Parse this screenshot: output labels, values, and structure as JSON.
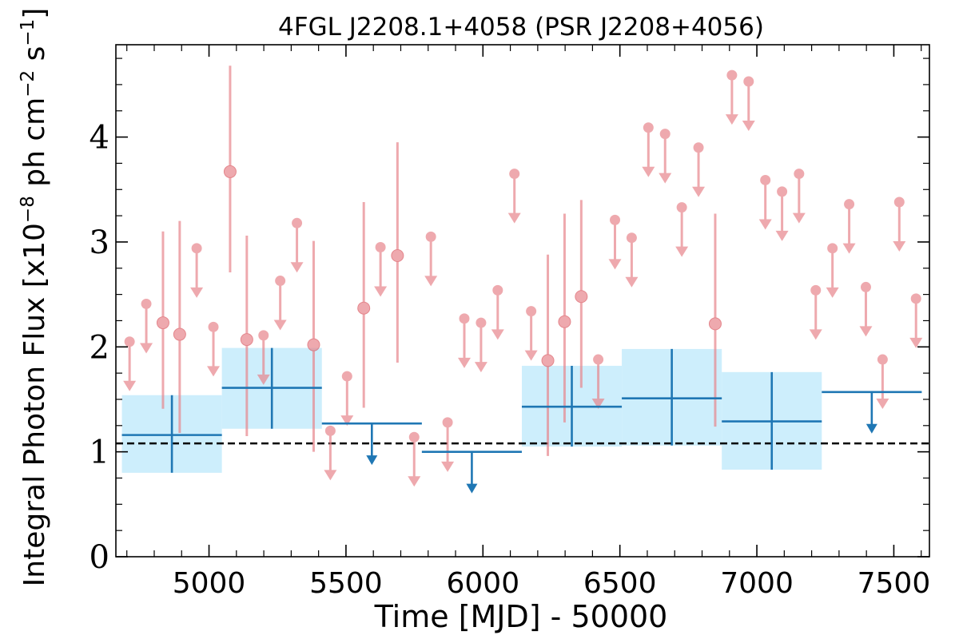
{
  "chart_data": {
    "type": "scatter",
    "title": "4FGL J2208.1+4058 (PSR J2208+4056)",
    "xlabel": "Time [MJD] - 50000",
    "ylabel": "Integral Photon Flux [x10^-8 ph cm^-2 s^-1]",
    "ylabel_parts": {
      "a": "Integral Photon Flux [x10",
      "b": "−8",
      "c": " ph cm",
      "d": "−2",
      "e": " s",
      "f": "−1",
      "g": "]"
    },
    "xlim": [
      4660,
      7630
    ],
    "ylim": [
      0,
      4.88
    ],
    "x_ticks": [
      5000,
      5500,
      6000,
      6500,
      7000,
      7500
    ],
    "x_tick_labels": [
      "5000",
      "5500",
      "6000",
      "6500",
      "7000",
      "7500"
    ],
    "y_ticks": [
      0,
      1,
      2,
      3,
      4
    ],
    "y_tick_labels": [
      "0",
      "1",
      "2",
      "3",
      "4"
    ],
    "reference_flux": 1.08,
    "colors": {
      "short_bins": "#e8868c",
      "long_bins": "#1f77b4",
      "long_band": "#cdeefc",
      "reference_line": "#000000"
    },
    "short_bins": [
      {
        "x": 4710,
        "y": 2.05,
        "ul": true
      },
      {
        "x": 4771,
        "y": 2.41,
        "ul": true
      },
      {
        "x": 4832,
        "y": 2.23,
        "ul": false,
        "lo": 1.41,
        "hi": 3.1
      },
      {
        "x": 4893,
        "y": 2.12,
        "ul": false,
        "lo": 1.18,
        "hi": 3.2
      },
      {
        "x": 4955,
        "y": 2.94,
        "ul": true
      },
      {
        "x": 5016,
        "y": 2.19,
        "ul": true
      },
      {
        "x": 5077,
        "y": 3.67,
        "ul": false,
        "lo": 2.71,
        "hi": 4.68
      },
      {
        "x": 5138,
        "y": 2.07,
        "ul": false,
        "lo": 1.15,
        "hi": 3.06
      },
      {
        "x": 5199,
        "y": 2.11,
        "ul": true
      },
      {
        "x": 5260,
        "y": 2.63,
        "ul": true
      },
      {
        "x": 5321,
        "y": 3.18,
        "ul": true
      },
      {
        "x": 5382,
        "y": 2.02,
        "ul": false,
        "lo": 1.0,
        "hi": 3.01
      },
      {
        "x": 5443,
        "y": 1.2,
        "ul": true
      },
      {
        "x": 5504,
        "y": 1.72,
        "ul": true
      },
      {
        "x": 5565,
        "y": 2.37,
        "ul": false,
        "lo": 1.42,
        "hi": 3.38
      },
      {
        "x": 5626,
        "y": 2.95,
        "ul": true
      },
      {
        "x": 5688,
        "y": 2.87,
        "ul": false,
        "lo": 1.85,
        "hi": 3.95
      },
      {
        "x": 5749,
        "y": 1.14,
        "ul": true
      },
      {
        "x": 5810,
        "y": 3.05,
        "ul": true
      },
      {
        "x": 5871,
        "y": 1.28,
        "ul": true
      },
      {
        "x": 5932,
        "y": 2.27,
        "ul": true
      },
      {
        "x": 5993,
        "y": 2.23,
        "ul": true
      },
      {
        "x": 6054,
        "y": 2.54,
        "ul": true
      },
      {
        "x": 6115,
        "y": 3.65,
        "ul": true
      },
      {
        "x": 6176,
        "y": 2.34,
        "ul": true
      },
      {
        "x": 6237,
        "y": 1.87,
        "ul": false,
        "lo": 0.96,
        "hi": 2.88
      },
      {
        "x": 6298,
        "y": 2.24,
        "ul": false,
        "lo": 1.28,
        "hi": 3.27
      },
      {
        "x": 6359,
        "y": 2.48,
        "ul": false,
        "lo": 1.61,
        "hi": 3.4
      },
      {
        "x": 6421,
        "y": 1.88,
        "ul": true
      },
      {
        "x": 6482,
        "y": 3.21,
        "ul": true
      },
      {
        "x": 6543,
        "y": 3.04,
        "ul": true
      },
      {
        "x": 6604,
        "y": 4.09,
        "ul": true
      },
      {
        "x": 6665,
        "y": 4.03,
        "ul": true
      },
      {
        "x": 6726,
        "y": 3.33,
        "ul": true
      },
      {
        "x": 6787,
        "y": 3.9,
        "ul": true
      },
      {
        "x": 6848,
        "y": 2.22,
        "ul": false,
        "lo": 1.24,
        "hi": 3.27
      },
      {
        "x": 6909,
        "y": 4.59,
        "ul": true
      },
      {
        "x": 6970,
        "y": 4.53,
        "ul": true
      },
      {
        "x": 7031,
        "y": 3.59,
        "ul": true
      },
      {
        "x": 7092,
        "y": 3.48,
        "ul": true
      },
      {
        "x": 7154,
        "y": 3.65,
        "ul": true
      },
      {
        "x": 7215,
        "y": 2.54,
        "ul": true
      },
      {
        "x": 7276,
        "y": 2.94,
        "ul": true
      },
      {
        "x": 7337,
        "y": 3.36,
        "ul": true
      },
      {
        "x": 7398,
        "y": 2.57,
        "ul": true
      },
      {
        "x": 7459,
        "y": 1.88,
        "ul": true
      },
      {
        "x": 7520,
        "y": 3.38,
        "ul": true
      },
      {
        "x": 7581,
        "y": 2.46,
        "ul": true
      }
    ],
    "long_bins": [
      {
        "x0": 4682,
        "x1": 5047,
        "y": 1.16,
        "ul": false,
        "lo": 0.8,
        "hi": 1.54
      },
      {
        "x0": 5047,
        "x1": 5412,
        "y": 1.61,
        "ul": false,
        "lo": 1.22,
        "hi": 1.99
      },
      {
        "x0": 5412,
        "x1": 5777,
        "y": 1.27,
        "ul": true
      },
      {
        "x0": 5777,
        "x1": 6142,
        "y": 1.0,
        "ul": true
      },
      {
        "x0": 6142,
        "x1": 6507,
        "y": 1.43,
        "ul": false,
        "lo": 1.05,
        "hi": 1.82
      },
      {
        "x0": 6507,
        "x1": 6872,
        "y": 1.51,
        "ul": false,
        "lo": 1.06,
        "hi": 1.98
      },
      {
        "x0": 6872,
        "x1": 7237,
        "y": 1.29,
        "ul": false,
        "lo": 0.83,
        "hi": 1.76
      },
      {
        "x0": 7237,
        "x1": 7602,
        "y": 1.57,
        "ul": true
      }
    ]
  }
}
